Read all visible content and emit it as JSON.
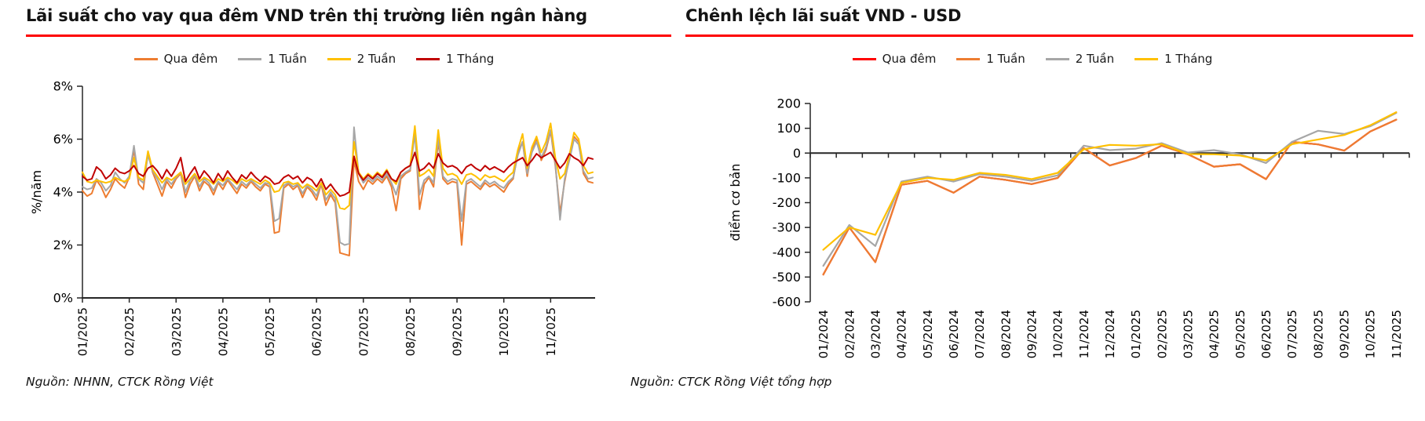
{
  "page": {
    "background": "#ffffff",
    "accent_rule_color": "#fe0000"
  },
  "charts": [
    {
      "title": "Lãi suất cho vay qua đêm VND trên thị trường liên ngân hàng",
      "source": "Nguồn: NHNN, CTCK Rồng Việt"
    },
    {
      "title": "Chênh lệch lãi suất VND - USD",
      "source": "Nguồn: CTCK Rồng Việt tổng hợp"
    }
  ],
  "chart_data": [
    {
      "type": "line",
      "title": "Lãi suất cho vay qua đêm VND trên thị trường liên ngân hàng",
      "xlabel": "",
      "ylabel": "%/năm",
      "ylim": [
        0,
        8
      ],
      "ytick_values": [
        0,
        2,
        4,
        6,
        8
      ],
      "ytick_labels": [
        "0%",
        "2%",
        "4%",
        "6%",
        "8%"
      ],
      "x_tick_labels": [
        "01/2025",
        "02/2025",
        "03/2025",
        "04/2025",
        "05/2025",
        "06/2025",
        "07/2025",
        "08/2025",
        "09/2025",
        "10/2025",
        "11/2025"
      ],
      "x_tick_indices": [
        0,
        10,
        20,
        30,
        40,
        50,
        60,
        70,
        80,
        90,
        100
      ],
      "grid": false,
      "legend_position": "top",
      "note": "daily interbank VND lending rates, values in % per year, approximated from plot",
      "series": [
        {
          "name": "Qua đêm",
          "color": "#ED7D31",
          "values": [
            4.05,
            3.85,
            3.95,
            4.45,
            4.2,
            3.8,
            4.1,
            4.5,
            4.3,
            4.15,
            4.55,
            5.6,
            4.3,
            4.1,
            5.5,
            4.75,
            4.3,
            3.85,
            4.4,
            4.15,
            4.5,
            4.7,
            3.8,
            4.3,
            4.6,
            4.05,
            4.4,
            4.25,
            3.9,
            4.35,
            4.1,
            4.45,
            4.2,
            3.95,
            4.3,
            4.15,
            4.4,
            4.2,
            4.05,
            4.3,
            4.2,
            2.45,
            2.5,
            4.15,
            4.3,
            4.1,
            4.25,
            3.8,
            4.2,
            4.0,
            3.7,
            4.3,
            3.5,
            3.9,
            3.6,
            1.7,
            1.65,
            1.6,
            5.2,
            4.4,
            4.1,
            4.45,
            4.3,
            4.5,
            4.35,
            4.6,
            4.2,
            3.3,
            4.5,
            4.7,
            4.8,
            6.4,
            3.35,
            4.3,
            4.55,
            4.2,
            5.9,
            4.5,
            4.3,
            4.4,
            4.35,
            2.0,
            4.3,
            4.4,
            4.25,
            4.1,
            4.35,
            4.2,
            4.3,
            4.15,
            4.0,
            4.3,
            4.5,
            5.5,
            5.9,
            4.6,
            5.6,
            6.0,
            5.2,
            5.6,
            6.3,
            5.0,
            3.2,
            4.4,
            5.3,
            6.1,
            5.9,
            4.7,
            4.4,
            4.35
          ]
        },
        {
          "name": "1 Tuần",
          "color": "#A6A6A6",
          "values": [
            4.2,
            4.1,
            4.15,
            4.5,
            4.35,
            4.05,
            4.25,
            4.75,
            4.5,
            4.35,
            4.6,
            5.75,
            4.5,
            4.35,
            5.4,
            4.8,
            4.5,
            4.1,
            4.5,
            4.3,
            4.55,
            4.75,
            4.0,
            4.45,
            4.65,
            4.2,
            4.5,
            4.35,
            4.05,
            4.4,
            4.25,
            4.5,
            4.3,
            4.1,
            4.4,
            4.25,
            4.45,
            4.3,
            4.15,
            4.35,
            4.3,
            2.9,
            3.0,
            4.25,
            4.35,
            4.2,
            4.3,
            3.95,
            4.25,
            4.1,
            3.85,
            4.35,
            3.7,
            4.0,
            3.75,
            2.1,
            2.0,
            2.05,
            6.45,
            4.7,
            4.35,
            4.55,
            4.4,
            4.6,
            4.45,
            4.7,
            4.35,
            3.9,
            4.6,
            4.75,
            4.85,
            6.2,
            3.9,
            4.45,
            4.6,
            4.35,
            6.05,
            4.6,
            4.4,
            4.5,
            4.45,
            2.9,
            4.4,
            4.5,
            4.35,
            4.2,
            4.45,
            4.3,
            4.4,
            4.25,
            4.15,
            4.4,
            4.55,
            5.4,
            5.9,
            4.7,
            5.5,
            5.9,
            5.3,
            5.7,
            6.35,
            5.1,
            2.95,
            4.5,
            5.2,
            6.0,
            5.8,
            4.8,
            4.5,
            4.55
          ]
        },
        {
          "name": "2 Tuần",
          "color": "#FFC000",
          "values": [
            4.75,
            4.4,
            4.35,
            4.45,
            4.4,
            4.35,
            4.4,
            4.55,
            4.45,
            4.4,
            4.5,
            5.3,
            4.55,
            4.45,
            5.55,
            4.85,
            4.6,
            4.35,
            4.55,
            4.45,
            4.6,
            4.75,
            4.3,
            4.5,
            4.7,
            4.4,
            4.55,
            4.45,
            4.3,
            4.5,
            4.4,
            4.55,
            4.45,
            4.3,
            4.5,
            4.4,
            4.5,
            4.4,
            4.3,
            4.45,
            4.35,
            4.0,
            4.05,
            4.35,
            4.4,
            4.3,
            4.35,
            4.15,
            4.3,
            4.2,
            4.05,
            4.35,
            3.9,
            4.1,
            3.9,
            3.4,
            3.35,
            3.5,
            5.9,
            4.75,
            4.5,
            4.7,
            4.55,
            4.75,
            4.6,
            4.85,
            4.5,
            4.3,
            4.75,
            4.9,
            5.0,
            6.5,
            4.6,
            4.7,
            4.85,
            4.6,
            6.35,
            4.9,
            4.65,
            4.7,
            4.6,
            4.3,
            4.65,
            4.7,
            4.6,
            4.45,
            4.65,
            4.55,
            4.6,
            4.5,
            4.4,
            4.6,
            4.75,
            5.6,
            6.2,
            4.9,
            5.7,
            6.1,
            5.5,
            5.9,
            6.6,
            5.3,
            4.5,
            4.7,
            5.4,
            6.25,
            6.0,
            5.0,
            4.7,
            4.75
          ]
        },
        {
          "name": "1 Tháng",
          "color": "#C00000",
          "values": [
            4.6,
            4.45,
            4.5,
            4.95,
            4.8,
            4.5,
            4.65,
            4.9,
            4.75,
            4.7,
            4.8,
            5.0,
            4.7,
            4.6,
            4.9,
            5.0,
            4.8,
            4.5,
            4.85,
            4.6,
            4.9,
            5.3,
            4.4,
            4.7,
            4.95,
            4.5,
            4.8,
            4.6,
            4.35,
            4.7,
            4.45,
            4.8,
            4.55,
            4.35,
            4.65,
            4.5,
            4.75,
            4.55,
            4.4,
            4.6,
            4.5,
            4.3,
            4.35,
            4.55,
            4.65,
            4.5,
            4.6,
            4.35,
            4.55,
            4.45,
            4.2,
            4.5,
            4.1,
            4.3,
            4.05,
            3.85,
            3.9,
            4.0,
            5.35,
            4.7,
            4.45,
            4.65,
            4.5,
            4.7,
            4.55,
            4.8,
            4.5,
            4.4,
            4.75,
            4.9,
            5.0,
            5.5,
            4.8,
            4.9,
            5.1,
            4.9,
            5.45,
            5.1,
            4.95,
            5.0,
            4.9,
            4.7,
            4.95,
            5.05,
            4.9,
            4.8,
            5.0,
            4.85,
            4.95,
            4.85,
            4.75,
            4.95,
            5.1,
            5.2,
            5.3,
            5.0,
            5.2,
            5.45,
            5.3,
            5.4,
            5.5,
            5.2,
            4.9,
            5.1,
            5.45,
            5.3,
            5.2,
            5.0,
            5.3,
            5.25
          ]
        }
      ]
    },
    {
      "type": "line",
      "title": "Chênh lệch lãi suất VND - USD",
      "xlabel": "",
      "ylabel": "điểm cơ bản",
      "ylim": [
        -600,
        200
      ],
      "ytick_values": [
        200,
        100,
        0,
        -100,
        -200,
        -300,
        -400,
        -500,
        -600
      ],
      "categories": [
        "01/2024",
        "02/2024",
        "03/2024",
        "04/2024",
        "05/2024",
        "06/2024",
        "07/2024",
        "08/2024",
        "09/2024",
        "10/2024",
        "11/2024",
        "12/2024",
        "01/2025",
        "02/2025",
        "03/2025",
        "04/2025",
        "05/2025",
        "06/2025",
        "07/2025",
        "08/2025",
        "09/2025",
        "10/2025",
        "11/2025"
      ],
      "grid": false,
      "legend_position": "top",
      "note": "VND-USD rate spread in basis points; Qua đêm series overlaps 1 Tuần almost exactly",
      "series": [
        {
          "name": "Qua đêm",
          "color": "#FF0000",
          "values": [
            -490,
            -300,
            -440,
            -128,
            -112,
            -160,
            -95,
            -108,
            -125,
            -100,
            20,
            -50,
            -20,
            30,
            -5,
            -55,
            -45,
            -105,
            45,
            35,
            10,
            87,
            135
          ]
        },
        {
          "name": "1 Tuần",
          "color": "#ED7D31",
          "values": [
            -490,
            -300,
            -440,
            -128,
            -112,
            -160,
            -95,
            -108,
            -125,
            -100,
            20,
            -50,
            -20,
            30,
            -5,
            -55,
            -45,
            -105,
            45,
            35,
            10,
            87,
            135
          ]
        },
        {
          "name": "2 Tuần",
          "color": "#A6A6A6",
          "values": [
            -455,
            -290,
            -375,
            -115,
            -95,
            -115,
            -85,
            -95,
            -112,
            -90,
            30,
            12,
            18,
            40,
            2,
            12,
            -5,
            -40,
            45,
            90,
            77,
            108,
            162
          ]
        },
        {
          "name": "1 Tháng",
          "color": "#FFC000",
          "values": [
            -390,
            -300,
            -330,
            -120,
            -100,
            -108,
            -80,
            -88,
            -105,
            -80,
            15,
            33,
            30,
            36,
            -4,
            -5,
            -10,
            -30,
            36,
            55,
            73,
            112,
            165
          ]
        }
      ]
    }
  ]
}
